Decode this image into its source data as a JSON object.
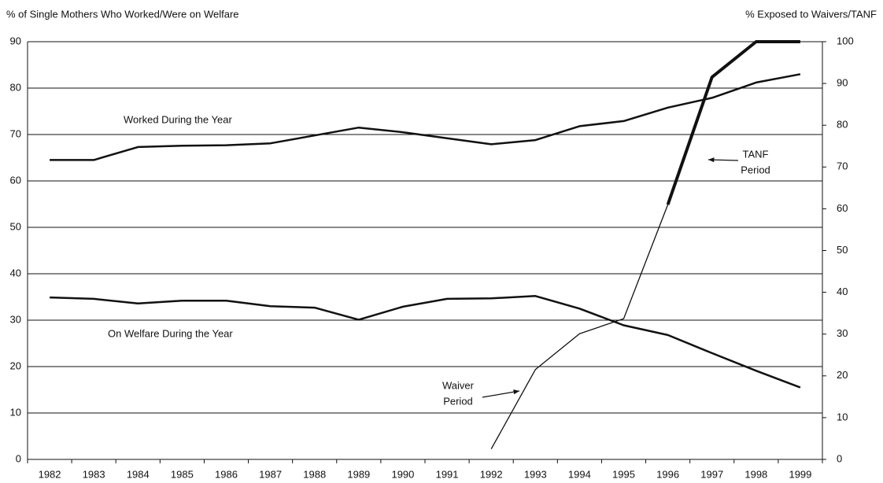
{
  "chart_data": {
    "type": "line",
    "y_label": "% of Single Mothers Who Worked/Were on Welfare",
    "y2_label": "% Exposed to Waivers/TANF",
    "categories": [
      "1982",
      "1983",
      "1984",
      "1985",
      "1986",
      "1987",
      "1988",
      "1989",
      "1990",
      "1991",
      "1992",
      "1993",
      "1994",
      "1995",
      "1996",
      "1997",
      "1998",
      "1999"
    ],
    "series": [
      {
        "name": "Worked During the Year",
        "color": "#111111",
        "line_width": 2.5,
        "axis": "y",
        "values": [
          64.5,
          64.5,
          67.3,
          67.6,
          67.7,
          68.1,
          69.8,
          71.5,
          70.5,
          69.2,
          67.9,
          68.8,
          71.8,
          72.9,
          75.8,
          77.9,
          81.2,
          83.0
        ]
      },
      {
        "name": "On Welfare During the Year",
        "color": "#111111",
        "line_width": 2.5,
        "axis": "y",
        "values": [
          34.9,
          34.6,
          33.6,
          34.2,
          34.2,
          33.0,
          32.7,
          30.1,
          32.9,
          34.6,
          34.7,
          35.2,
          32.5,
          28.9,
          26.8,
          22.9,
          19.1,
          15.5
        ]
      },
      {
        "color": "#111111",
        "line_width": 1.3,
        "axis": "y2",
        "values": [
          null,
          null,
          null,
          null,
          null,
          null,
          null,
          null,
          null,
          null,
          2.5,
          21.5,
          30.1,
          33.7,
          61,
          null,
          null,
          null
        ]
      },
      {
        "color": "#111111",
        "line_width": 4,
        "axis": "y2",
        "values": [
          null,
          null,
          null,
          null,
          null,
          null,
          null,
          null,
          null,
          null,
          null,
          null,
          null,
          null,
          61,
          91.5,
          100,
          100
        ]
      }
    ],
    "annotations": [
      {
        "lines": [
          "Waiver",
          "Period"
        ]
      },
      {
        "lines": [
          "TANF",
          "Period"
        ]
      }
    ],
    "ylim": [
      0,
      90
    ],
    "yticks": [
      0,
      10,
      20,
      30,
      40,
      50,
      60,
      70,
      80,
      90
    ],
    "y2lim": [
      0,
      100
    ],
    "y2ticks": [
      0,
      10,
      20,
      30,
      40,
      50,
      60,
      70,
      80,
      90,
      100
    ],
    "grid": true
  }
}
